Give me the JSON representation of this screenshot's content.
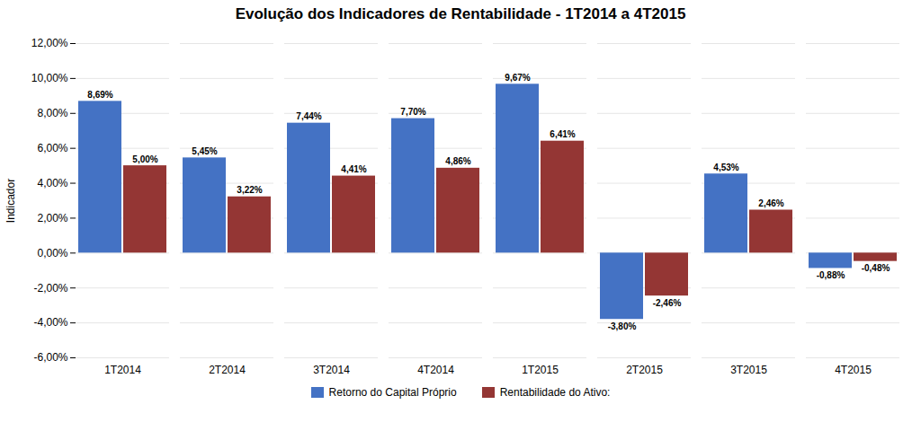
{
  "chart_data": {
    "type": "bar",
    "title": "Evolução dos Indicadores de Rentabilidade - 1T2014 a 4T2015",
    "ylabel": "Indicador",
    "categories": [
      "1T2014",
      "2T2014",
      "3T2014",
      "4T2014",
      "1T2015",
      "2T2015",
      "3T2015",
      "4T2015"
    ],
    "series": [
      {
        "name": "Retorno do Capital Próprio",
        "color": "#4472C4",
        "values": [
          8.69,
          5.45,
          7.44,
          7.7,
          9.67,
          -3.8,
          4.53,
          -0.88
        ],
        "value_labels": [
          "8,69%",
          "5,45%",
          "7,44%",
          "7,70%",
          "9,67%",
          "-3,80%",
          "4,53%",
          "-0,88%"
        ]
      },
      {
        "name": "Rentabilidade do Ativo:",
        "color": "#943634",
        "values": [
          5.0,
          3.22,
          4.41,
          4.86,
          6.41,
          -2.46,
          2.46,
          -0.48
        ],
        "value_labels": [
          "5,00%",
          "3,22%",
          "4,41%",
          "4,86%",
          "6,41%",
          "-2,46%",
          "2,46%",
          "-0,48%"
        ]
      }
    ],
    "ylim": [
      -6.0,
      12.0
    ],
    "yticks": [
      {
        "value": -6.0,
        "label": "-6,00%"
      },
      {
        "value": -4.0,
        "label": "-4,00%"
      },
      {
        "value": -2.0,
        "label": "-2,00%"
      },
      {
        "value": 0.0,
        "label": "0,00%"
      },
      {
        "value": 2.0,
        "label": "2,00%"
      },
      {
        "value": 4.0,
        "label": "4,00%"
      },
      {
        "value": 6.0,
        "label": "6,00%"
      },
      {
        "value": 8.0,
        "label": "8,00%"
      },
      {
        "value": 10.0,
        "label": "10,00%"
      },
      {
        "value": 12.0,
        "label": "12,00%"
      }
    ],
    "grid": true,
    "legend": "bottom",
    "data_labels": true
  }
}
